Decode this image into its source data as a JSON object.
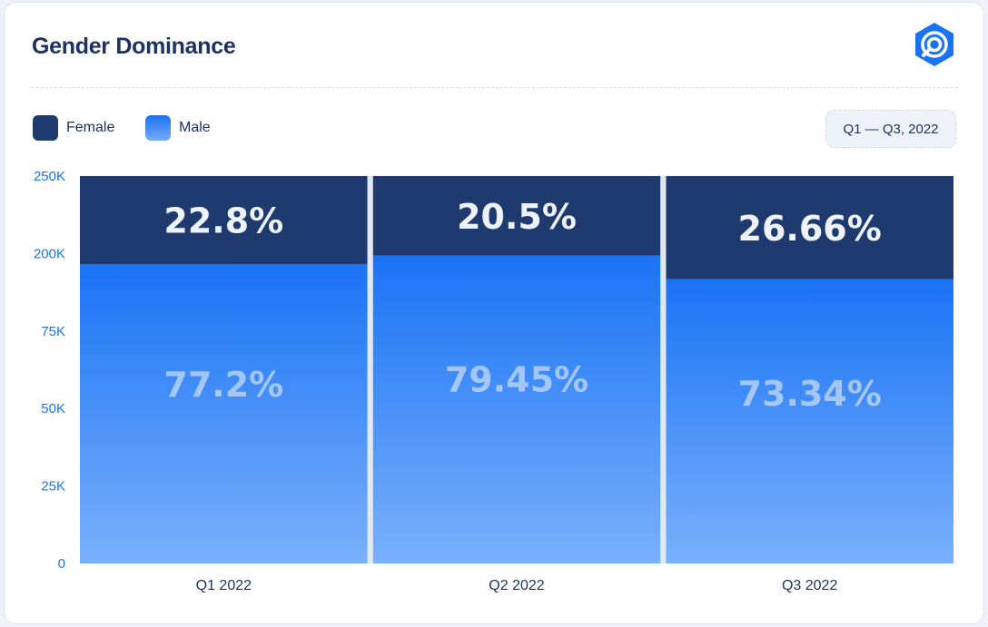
{
  "header": {
    "title": "Gender Dominance",
    "period": "Q1 — Q3, 2022"
  },
  "legend": [
    {
      "label": "Female",
      "color": "#1e3a6e"
    },
    {
      "label": "Male",
      "color": "#1a73f5"
    }
  ],
  "chart_data": {
    "type": "bar",
    "stacked": "percent",
    "categories": [
      "Q1 2022",
      "Q2 2022",
      "Q3 2022"
    ],
    "series": [
      {
        "name": "Male",
        "values": [
          77.2,
          79.45,
          73.34
        ],
        "labels": [
          "77.2%",
          "79.45%",
          "73.34%"
        ],
        "color": "#1a73f5"
      },
      {
        "name": "Female",
        "values": [
          22.8,
          20.5,
          26.66
        ],
        "labels": [
          "22.8%",
          "20.5%",
          "26.66%"
        ],
        "color": "#1e3a6e"
      }
    ],
    "y_ticks": [
      "0",
      "25K",
      "50K",
      "75K",
      "200K",
      "250K"
    ],
    "legend_position": "top-left",
    "grid": false
  }
}
